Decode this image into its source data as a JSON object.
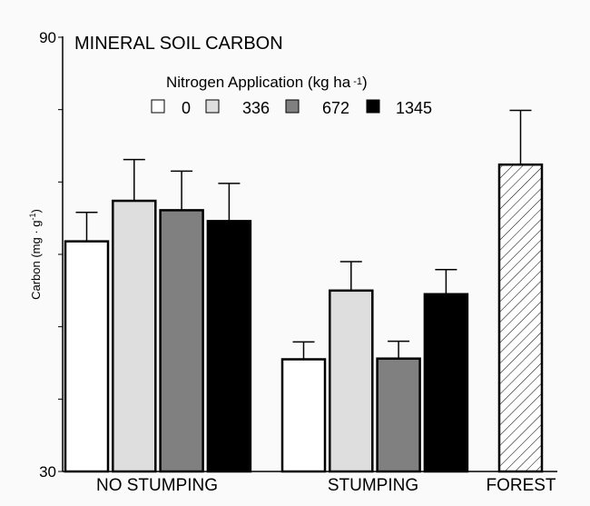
{
  "chart_data": {
    "type": "bar",
    "title": "MINERAL SOIL CARBON",
    "ylabel": "Carbon (mg · g-1)",
    "ylabel_main": "Carbon (mg · g",
    "ylabel_sup": "-1",
    "ylabel_close": ")",
    "xlabel": "",
    "ylim": [
      30,
      90
    ],
    "y_tick_values": [
      30,
      40,
      50,
      60,
      70,
      80,
      90
    ],
    "y_tick_labels": [
      {
        "value": 30,
        "label": "30"
      },
      {
        "value": 90,
        "label": "90"
      }
    ],
    "grid": false,
    "legend": {
      "title": "Nitrogen Application  (kg  ha",
      "title_sup": "-1",
      "title_close": ")",
      "placement": "top-center",
      "entries": [
        {
          "label": "0",
          "fill": "#ffffff"
        },
        {
          "label": "336",
          "fill": "#dedede"
        },
        {
          "label": "672",
          "fill": "#808080"
        },
        {
          "label": "1345",
          "fill": "#000000"
        }
      ]
    },
    "groups": [
      {
        "label": "NO STUMPING",
        "bars": [
          {
            "series": "0",
            "value": 61.8,
            "error_upper": 65.8,
            "fill": "#ffffff"
          },
          {
            "series": "336",
            "value": 67.4,
            "error_upper": 73.1,
            "fill": "#dedede"
          },
          {
            "series": "672",
            "value": 66.1,
            "error_upper": 71.5,
            "fill": "#808080"
          },
          {
            "series": "1345",
            "value": 64.6,
            "error_upper": 69.8,
            "fill": "#000000"
          }
        ]
      },
      {
        "label": "STUMPING",
        "bars": [
          {
            "series": "0",
            "value": 45.5,
            "error_upper": 47.9,
            "fill": "#ffffff"
          },
          {
            "series": "336",
            "value": 55.0,
            "error_upper": 59.0,
            "fill": "#dedede"
          },
          {
            "series": "672",
            "value": 45.6,
            "error_upper": 48.0,
            "fill": "#808080"
          },
          {
            "series": "1345",
            "value": 54.5,
            "error_upper": 57.9,
            "fill": "#000000"
          }
        ]
      },
      {
        "label": "FOREST",
        "bars": [
          {
            "series": "forest",
            "value": 72.4,
            "error_upper": 79.9,
            "fill": "hatch"
          }
        ]
      }
    ]
  }
}
